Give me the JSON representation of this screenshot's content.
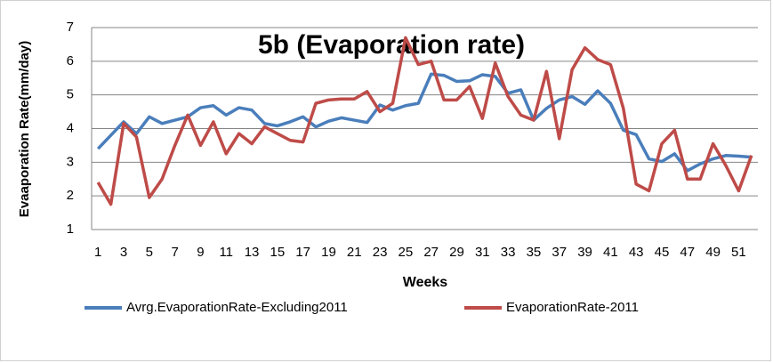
{
  "chart_data": {
    "type": "line",
    "title": "5b (Evaporation rate)",
    "x_label": "Weeks",
    "y_label": "Evaaporation Rate(mm/day)",
    "categories": [
      1,
      null,
      3,
      null,
      5,
      null,
      7,
      null,
      9,
      null,
      11,
      null,
      13,
      null,
      15,
      null,
      17,
      null,
      19,
      null,
      21,
      null,
      23,
      null,
      25,
      null,
      27,
      null,
      29,
      null,
      31,
      null,
      33,
      null,
      35,
      null,
      37,
      null,
      39,
      null,
      41,
      null,
      43,
      null,
      45,
      null,
      47,
      null,
      49,
      null,
      51,
      null
    ],
    "series": [
      {
        "name": "Avrg.EvaporationRate-Excluding2011",
        "color": "#4a7ebb",
        "values": [
          3.4,
          3.8,
          4.2,
          3.85,
          4.35,
          4.15,
          4.25,
          4.35,
          4.62,
          4.68,
          4.4,
          4.62,
          4.55,
          4.15,
          4.08,
          4.2,
          4.35,
          4.05,
          4.22,
          4.32,
          4.25,
          4.18,
          4.7,
          4.55,
          4.68,
          4.75,
          5.62,
          5.58,
          5.4,
          5.42,
          5.6,
          5.55,
          5.05,
          5.15,
          4.25,
          4.6,
          4.85,
          4.95,
          4.72,
          5.12,
          4.75,
          3.95,
          3.82,
          3.1,
          3.02,
          3.25,
          2.75,
          2.95,
          3.1,
          3.2,
          3.18,
          3.15
        ]
      },
      {
        "name": "EvaporationRate-2011",
        "color": "#be4b48",
        "values": [
          2.4,
          1.75,
          4.15,
          3.75,
          1.95,
          2.5,
          3.5,
          4.4,
          3.5,
          4.2,
          3.25,
          3.85,
          3.55,
          4.05,
          3.85,
          3.65,
          3.6,
          4.75,
          4.85,
          4.88,
          4.88,
          5.1,
          4.5,
          4.75,
          6.7,
          5.9,
          6.0,
          4.85,
          4.85,
          5.25,
          4.3,
          5.95,
          4.95,
          4.4,
          4.25,
          5.7,
          3.7,
          5.75,
          6.4,
          6.05,
          5.9,
          4.6,
          2.35,
          2.15,
          3.55,
          3.95,
          2.5,
          2.5,
          3.55,
          2.9,
          2.15,
          3.2
        ]
      }
    ],
    "ylim": [
      1,
      7
    ],
    "yticks": [
      1,
      2,
      3,
      4,
      5,
      6,
      7
    ],
    "grid": true,
    "legend": "bottom"
  }
}
